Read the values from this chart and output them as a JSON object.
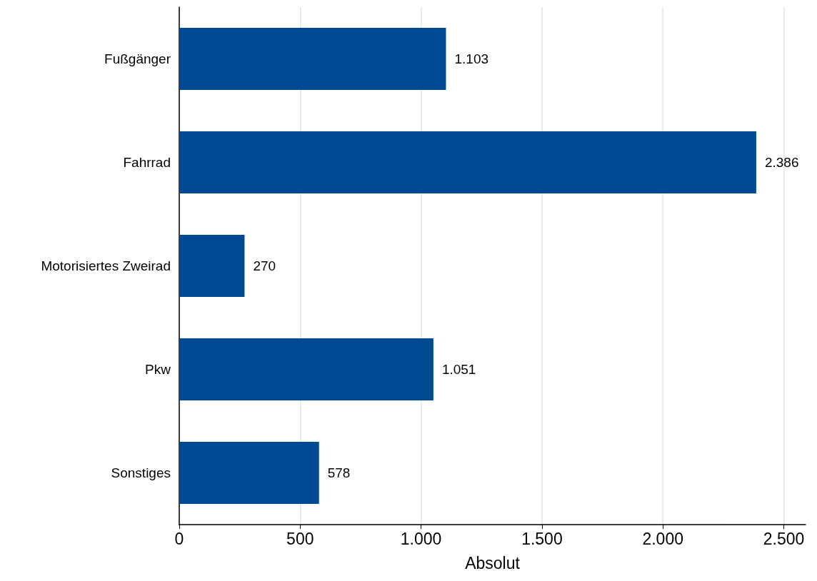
{
  "chart_data": {
    "type": "bar",
    "orientation": "horizontal",
    "xlabel": "Absolut",
    "categories": [
      "Fußgänger",
      "Fahrrad",
      "Motorisiertes Zweirad",
      "Pkw",
      "Sonstiges"
    ],
    "values": [
      1103,
      2386,
      270,
      1051,
      578
    ],
    "value_labels": [
      "1.103",
      "2.386",
      "270",
      "1.051",
      "578"
    ],
    "color": "#004a93",
    "xlim": [
      0,
      2590
    ],
    "xticks": [
      0,
      500,
      {
        "value": 1000,
        "label": "1.000"
      },
      {
        "value": 1500,
        "label": "1.500"
      },
      {
        "value": 2000,
        "label": "2.000"
      },
      {
        "value": 2500,
        "label": "2.500"
      }
    ],
    "grid": "x"
  }
}
